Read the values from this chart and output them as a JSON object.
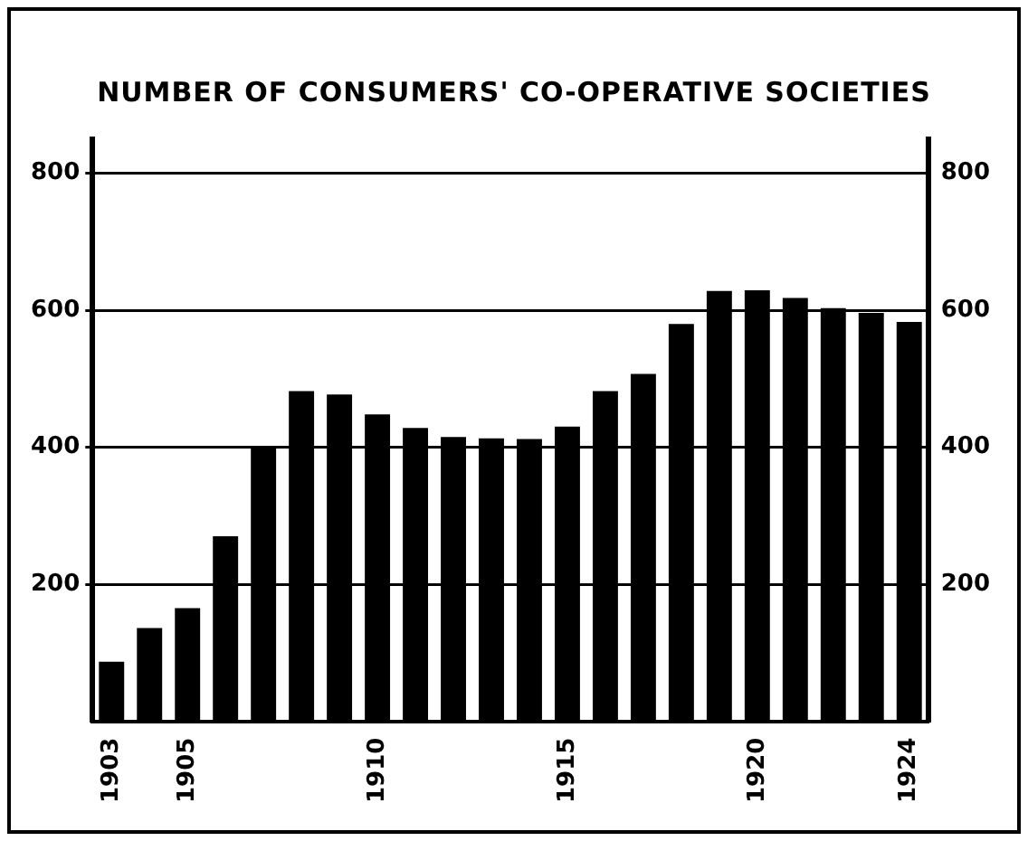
{
  "chart_data": {
    "type": "bar",
    "title": "NUMBER OF CONSUMERS' CO-OPERATIVE SOCIETIES",
    "categories": [
      "1903",
      null,
      "1905",
      null,
      null,
      null,
      null,
      "1910",
      null,
      null,
      null,
      null,
      "1915",
      null,
      null,
      null,
      null,
      "1920",
      null,
      null,
      null,
      "1924"
    ],
    "values": [
      87,
      136,
      165,
      270,
      400,
      482,
      477,
      448,
      428,
      415,
      413,
      412,
      430,
      482,
      507,
      580,
      628,
      629,
      618,
      603,
      596,
      583
    ],
    "color": "#000000",
    "ylim": [
      0,
      850
    ],
    "yticks": [
      200,
      400,
      600,
      800
    ],
    "y2lim": [
      0,
      850
    ],
    "y2ticks": [
      200,
      400,
      600,
      800
    ],
    "grid": "y",
    "legend": false
  }
}
